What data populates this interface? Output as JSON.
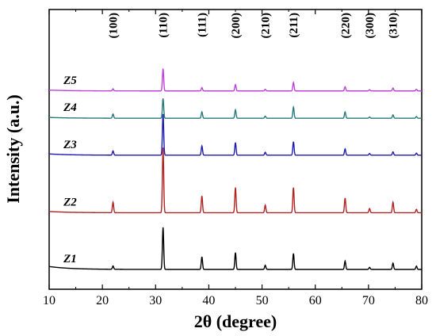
{
  "chart_data": {
    "type": "line",
    "xlabel": "2θ (degree)",
    "ylabel": "Intensity (a.u.)",
    "xlim": [
      10,
      80
    ],
    "x_ticks": [
      10,
      20,
      30,
      40,
      50,
      60,
      70,
      80
    ],
    "y_ticks_shown": false,
    "grid": false,
    "legend": "none",
    "peak_annotations": [
      {
        "label": "(100)",
        "x": 22.0
      },
      {
        "label": "(110)",
        "x": 31.4
      },
      {
        "label": "(111)",
        "x": 38.7
      },
      {
        "label": "(200)",
        "x": 45.0
      },
      {
        "label": "(210)",
        "x": 50.6
      },
      {
        "label": "(211)",
        "x": 55.9
      },
      {
        "label": "(220)",
        "x": 65.6
      },
      {
        "label": "(300)",
        "x": 70.2
      },
      {
        "label": "(310)",
        "x": 74.6
      }
    ],
    "series": [
      {
        "name": "Z1",
        "color": "#000000",
        "baseline": 0.0,
        "start_rise": 0.07,
        "peaks": [
          [
            22.0,
            0.08
          ],
          [
            31.4,
            1.0
          ],
          [
            38.7,
            0.3
          ],
          [
            45.0,
            0.4
          ],
          [
            50.6,
            0.1
          ],
          [
            55.9,
            0.38
          ],
          [
            65.6,
            0.2
          ],
          [
            70.2,
            0.05
          ],
          [
            74.6,
            0.15
          ],
          [
            79.0,
            0.08
          ]
        ]
      },
      {
        "name": "Z2",
        "color": "#b22222",
        "baseline": 1.35,
        "start_rise": 0.03,
        "peaks": [
          [
            22.0,
            0.25
          ],
          [
            31.4,
            1.55
          ],
          [
            38.7,
            0.4
          ],
          [
            45.0,
            0.6
          ],
          [
            50.6,
            0.18
          ],
          [
            55.9,
            0.6
          ],
          [
            65.6,
            0.35
          ],
          [
            70.2,
            0.1
          ],
          [
            74.6,
            0.25
          ],
          [
            79.0,
            0.08
          ]
        ]
      },
      {
        "name": "Z3",
        "color": "#1c1cb0",
        "baseline": 2.72,
        "start_rise": 0.03,
        "peaks": [
          [
            22.0,
            0.1
          ],
          [
            31.4,
            0.98
          ],
          [
            38.7,
            0.22
          ],
          [
            45.0,
            0.3
          ],
          [
            50.6,
            0.07
          ],
          [
            55.9,
            0.32
          ],
          [
            65.6,
            0.15
          ],
          [
            70.2,
            0.04
          ],
          [
            74.6,
            0.08
          ],
          [
            79.0,
            0.05
          ]
        ]
      },
      {
        "name": "Z4",
        "color": "#2a7a7a",
        "baseline": 3.6,
        "start_rise": 0.02,
        "peaks": [
          [
            22.0,
            0.1
          ],
          [
            31.4,
            0.47
          ],
          [
            38.7,
            0.15
          ],
          [
            45.0,
            0.2
          ],
          [
            50.6,
            0.05
          ],
          [
            55.9,
            0.26
          ],
          [
            65.6,
            0.15
          ],
          [
            70.2,
            0.03
          ],
          [
            74.6,
            0.08
          ],
          [
            79.0,
            0.04
          ]
        ]
      },
      {
        "name": "Z5",
        "color": "#c040e0",
        "baseline": 4.25,
        "start_rise": 0.02,
        "peaks": [
          [
            22.0,
            0.05
          ],
          [
            31.4,
            0.53
          ],
          [
            38.7,
            0.08
          ],
          [
            45.0,
            0.15
          ],
          [
            50.6,
            0.04
          ],
          [
            55.9,
            0.2
          ],
          [
            65.6,
            0.1
          ],
          [
            70.2,
            0.03
          ],
          [
            74.6,
            0.07
          ],
          [
            79.0,
            0.04
          ]
        ]
      }
    ]
  }
}
